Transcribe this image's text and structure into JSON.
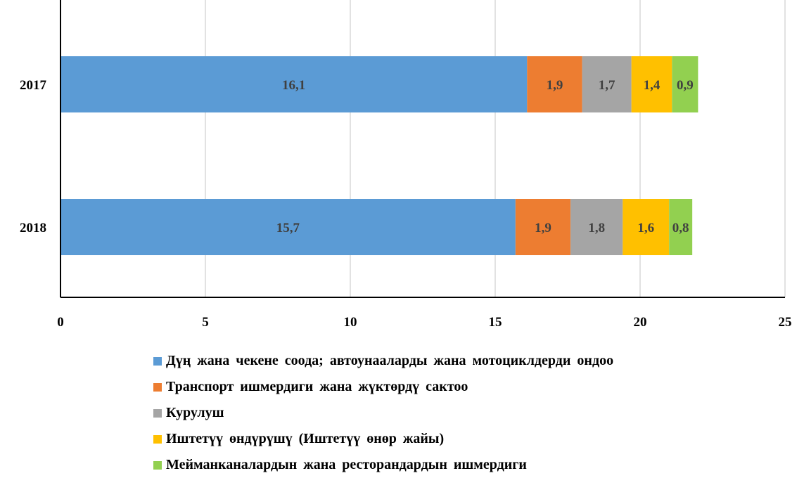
{
  "chart_data": {
    "type": "bar",
    "orientation": "horizontal",
    "stacked": true,
    "categories": [
      "2017",
      "2018"
    ],
    "series": [
      {
        "name": "Дүң жана чекене соода; автоунааларды жана мотоциклдерди ондоо",
        "color": "#5B9BD5",
        "values": [
          16.1,
          15.7
        ],
        "labels": [
          "16,1",
          "15,7"
        ]
      },
      {
        "name": "Транспорт ишмердиги жана жүктөрдү сактоо",
        "color": "#ED7D31",
        "values": [
          1.9,
          1.9
        ],
        "labels": [
          "1,9",
          "1,9"
        ]
      },
      {
        "name": "Курулуш",
        "color": "#A5A5A5",
        "values": [
          1.7,
          1.8
        ],
        "labels": [
          "1,7",
          "1,8"
        ]
      },
      {
        "name": "Иштетүү өндүрүшү (Иштетүү өнөр жайы)",
        "color": "#FFC000",
        "values": [
          1.4,
          1.6
        ],
        "labels": [
          "1,4",
          "1,6"
        ]
      },
      {
        "name": "Мейманканалардын жана ресторандардын ишмердиги",
        "color": "#92D050",
        "values": [
          0.9,
          0.8
        ],
        "labels": [
          "0,9",
          "0,8"
        ]
      }
    ],
    "xlim": [
      0,
      25
    ],
    "xticks": [
      "0",
      "5",
      "10",
      "15",
      "20",
      "25"
    ],
    "grid": true,
    "legend_position": "bottom",
    "title": "",
    "xlabel": "",
    "ylabel": ""
  }
}
